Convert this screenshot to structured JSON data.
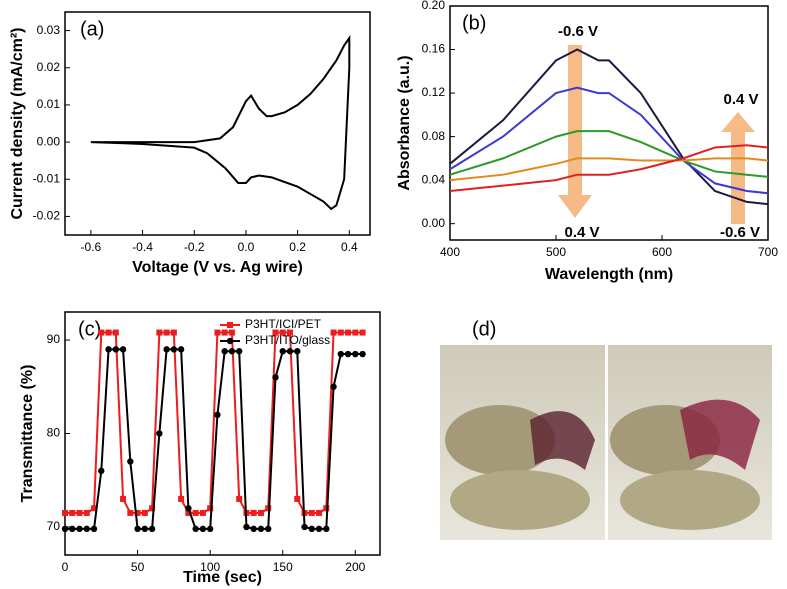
{
  "chart_data": [
    {
      "type": "line",
      "label": "(a)",
      "x_label": "Voltage (V vs. Ag wire)",
      "y_label": "Current density (mA/cm²)",
      "color": "#000000",
      "x": [
        -0.6,
        -0.4,
        -0.2,
        -0.1,
        -0.05,
        0,
        0.02,
        0.05,
        0.08,
        0.1,
        0.15,
        0.2,
        0.25,
        0.3,
        0.35,
        0.38,
        0.4,
        0.4,
        0.38,
        0.35,
        0.33,
        0.3,
        0.2,
        0.1,
        0.05,
        0.02,
        0,
        -0.03,
        -0.08,
        -0.15,
        -0.2,
        -0.4,
        -0.6
      ],
      "values": [
        0,
        0,
        0,
        0.001,
        0.004,
        0.011,
        0.0125,
        0.009,
        0.007,
        0.007,
        0.008,
        0.01,
        0.013,
        0.017,
        0.022,
        0.026,
        0.028,
        0.02,
        -0.01,
        -0.017,
        -0.018,
        -0.016,
        -0.012,
        -0.0095,
        -0.009,
        -0.0095,
        -0.011,
        -0.011,
        -0.007,
        -0.003,
        -0.0015,
        -0.0005,
        0
      ],
      "xlim": [
        -0.7,
        0.48
      ],
      "ylim": [
        -0.025,
        0.035
      ],
      "xticks": [
        -0.6,
        -0.4,
        -0.2,
        {
          "value": 0,
          "label": "0.0"
        },
        0.2,
        0.4
      ],
      "yticks": [
        -0.02,
        -0.01,
        {
          "value": 0,
          "label": "0.00"
        },
        0.01,
        0.02,
        0.03
      ]
    },
    {
      "type": "line",
      "label": "(b)",
      "x_label": "Wavelength (nm)",
      "y_label": "Absorbance (a.u.)",
      "x": [
        400,
        450,
        500,
        520,
        540,
        550,
        580,
        620,
        650,
        680,
        700
      ],
      "series": [
        {
          "color": "#1a1a40",
          "values": [
            0.055,
            0.095,
            0.15,
            0.16,
            0.15,
            0.15,
            0.12,
            0.06,
            0.03,
            0.02,
            0.018
          ]
        },
        {
          "color": "#3a3ad0",
          "values": [
            0.05,
            0.08,
            0.12,
            0.125,
            0.12,
            0.12,
            0.1,
            0.058,
            0.037,
            0.03,
            0.028
          ]
        },
        {
          "color": "#2a9a2a",
          "values": [
            0.045,
            0.06,
            0.08,
            0.085,
            0.085,
            0.085,
            0.075,
            0.058,
            0.048,
            0.045,
            0.043
          ]
        },
        {
          "color": "#e08a20",
          "values": [
            0.04,
            0.045,
            0.055,
            0.06,
            0.06,
            0.06,
            0.058,
            0.058,
            0.06,
            0.06,
            0.058
          ]
        },
        {
          "color": "#e02020",
          "values": [
            0.03,
            0.035,
            0.04,
            0.045,
            0.045,
            0.045,
            0.05,
            0.06,
            0.07,
            0.072,
            0.07
          ]
        }
      ],
      "annotations": [
        "-0.6 V",
        "0.4 V",
        "0.4 V",
        "-0.6 V"
      ],
      "xlim": [
        400,
        700
      ],
      "ylim": [
        -0.015,
        0.2
      ],
      "xticks": [
        400,
        500,
        600,
        700
      ],
      "yticks": [
        {
          "value": 0,
          "label": "0.00"
        },
        0.04,
        0.08,
        0.12,
        0.16,
        {
          "value": 0.2,
          "label": "0.20"
        }
      ]
    },
    {
      "type": "line",
      "label": "(c)",
      "x_label": "Time (sec)",
      "y_label": "Transmittance (%)",
      "x": [
        0,
        5,
        10,
        15,
        20,
        25,
        30,
        35,
        40,
        45,
        50,
        55,
        60,
        65,
        70,
        75,
        80,
        85,
        90,
        95,
        100,
        105,
        110,
        115,
        120,
        125,
        130,
        135,
        140,
        145,
        150,
        155,
        160,
        165,
        170,
        175,
        180,
        185,
        190,
        195,
        200,
        205
      ],
      "series": [
        {
          "name": "P3HT/ICI/PET",
          "color": "#ee1c1c",
          "marker": "square",
          "values": [
            71.5,
            71.5,
            71.5,
            71.5,
            72,
            90.8,
            90.8,
            90.8,
            73,
            71.5,
            71.5,
            71.5,
            72,
            90.8,
            90.8,
            90.8,
            73,
            71.5,
            71.5,
            71.5,
            72,
            90.8,
            90.8,
            90.8,
            73,
            71.5,
            71.5,
            71.5,
            72,
            90.8,
            90.8,
            90.8,
            73,
            71.5,
            71.5,
            71.5,
            72,
            90.8,
            90.8,
            90.8,
            90.8,
            90.8
          ]
        },
        {
          "name": "P3HT/ITO/glass",
          "color": "#000000",
          "marker": "circle",
          "values": [
            69.8,
            69.8,
            69.8,
            69.8,
            69.8,
            76,
            89,
            89,
            89,
            77,
            69.8,
            69.8,
            69.8,
            80,
            89,
            89,
            89,
            72,
            69.8,
            69.8,
            69.8,
            82,
            88.8,
            88.8,
            88.8,
            70,
            69.8,
            69.8,
            69.8,
            86,
            88.8,
            88.8,
            88.8,
            70,
            69.8,
            69.8,
            69.8,
            85,
            88.5,
            88.5,
            88.5,
            88.5
          ]
        }
      ],
      "xlim": [
        0,
        217
      ],
      "ylim": [
        67,
        93
      ],
      "xticks": [
        0,
        50,
        100,
        150,
        200
      ],
      "yticks": [
        70,
        80,
        90
      ]
    }
  ],
  "photo_panel": {
    "label": "(d)"
  }
}
